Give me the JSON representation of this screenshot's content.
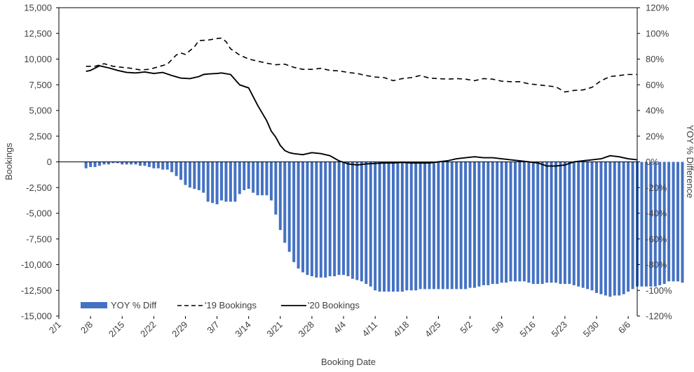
{
  "chart_data": {
    "type": "bar",
    "title": "",
    "xlabel": "Booking Date",
    "ylabel": "Bookings",
    "y2label": "YOY % Difference",
    "ylim": [
      -15000,
      15000
    ],
    "y2lim": [
      -120,
      120
    ],
    "yticks": [
      15000,
      12500,
      10000,
      7500,
      5000,
      2500,
      0,
      -2500,
      -5000,
      -7500,
      -10000,
      -12500,
      -15000
    ],
    "ytick_labels": [
      "15,000",
      "12,500",
      "10,000",
      "7,500",
      "5,000",
      "2,500",
      "0",
      "-2,500",
      "-5,000",
      "-7,500",
      "-10,000",
      "-12,500",
      "-15,000"
    ],
    "y2ticks": [
      120,
      100,
      80,
      60,
      40,
      20,
      0,
      -20,
      -40,
      -60,
      -80,
      -100,
      -120
    ],
    "y2tick_labels": [
      "120%",
      "100%",
      "80%",
      "60%",
      "40%",
      "20%",
      "0%",
      "-20%",
      "-40%",
      "-60%",
      "-80%",
      "-100%",
      "-120%"
    ],
    "x_tick_labels": [
      "2/1",
      "2/8",
      "2/15",
      "2/22",
      "2/29",
      "3/7",
      "3/14",
      "3/21",
      "3/28",
      "4/4",
      "4/11",
      "4/18",
      "4/25",
      "5/2",
      "5/9",
      "5/16",
      "5/23",
      "5/30",
      "6/6"
    ],
    "x_tick_day_index": [
      0,
      7,
      14,
      21,
      28,
      35,
      42,
      49,
      56,
      63,
      70,
      77,
      84,
      91,
      98,
      105,
      112,
      119,
      126
    ],
    "x_day_range": [
      0,
      128
    ],
    "grid": false,
    "legend_position": "bottom-left",
    "colors": {
      "bar": "#4472C4",
      "line19": "#000000",
      "line20": "#000000",
      "axis": "#000000"
    },
    "series": [
      {
        "name": "YOY % Diff",
        "kind": "bar",
        "axis": "secondary",
        "unit": "%",
        "start_day": 6,
        "values": [
          -5,
          -4,
          -4,
          -3,
          -2,
          -2,
          -1,
          -1,
          -2,
          -2,
          -2,
          -2,
          -3,
          -3,
          -4,
          -5,
          -5,
          -6,
          -6,
          -8,
          -11,
          -14,
          -18,
          -20,
          -21,
          -22,
          -24,
          -31,
          -32,
          -33,
          -30,
          -31,
          -31,
          -31,
          -25,
          -22,
          -21,
          -24,
          -26,
          -26,
          -26,
          -30,
          -41,
          -53,
          -63,
          -70,
          -78,
          -83,
          -86,
          -88,
          -89,
          -90,
          -90,
          -90,
          -89,
          -89,
          -88,
          -88,
          -89,
          -91,
          -92,
          -93,
          -95,
          -97,
          -100,
          -101,
          -101,
          -101,
          -101,
          -101,
          -101,
          -100,
          -100,
          -100,
          -99,
          -99,
          -99,
          -99,
          -99,
          -99,
          -99,
          -99,
          -99,
          -99,
          -99,
          -98,
          -98,
          -97,
          -96,
          -96,
          -95,
          -95,
          -94,
          -94,
          -93,
          -93,
          -93,
          -93,
          -94,
          -95,
          -95,
          -95,
          -94,
          -94,
          -94,
          -95,
          -95,
          -95,
          -96,
          -97,
          -98,
          -99,
          -100,
          -102,
          -103,
          -104,
          -105,
          -104,
          -104,
          -103,
          -101,
          -99,
          -97,
          -97,
          -97,
          -97,
          -97,
          -96,
          -95,
          -93,
          -93,
          -93,
          -94
        ]
      },
      {
        "name": "'19 Bookings",
        "kind": "line",
        "axis": "primary",
        "dash": "dashed",
        "x_day": [
          6,
          8,
          10,
          12,
          14,
          16,
          18,
          20,
          22,
          24,
          26,
          27,
          28,
          30,
          31,
          33,
          35,
          36,
          37,
          38,
          40,
          42,
          44,
          46,
          48,
          50,
          52,
          54,
          56,
          58,
          60,
          62,
          64,
          66,
          68,
          70,
          72,
          74,
          76,
          78,
          80,
          82,
          84,
          86,
          88,
          90,
          92,
          94,
          96,
          98,
          100,
          102,
          104,
          106,
          108,
          110,
          112,
          114,
          116,
          118,
          120,
          122,
          124,
          126,
          128
        ],
        "y": [
          9300,
          9300,
          9550,
          9300,
          9200,
          9100,
          8950,
          9000,
          9250,
          9500,
          10400,
          10600,
          10450,
          11200,
          11800,
          11850,
          12000,
          12050,
          11700,
          11000,
          10400,
          10000,
          9800,
          9600,
          9450,
          9500,
          9200,
          9000,
          9000,
          9100,
          8900,
          8850,
          8700,
          8600,
          8400,
          8250,
          8200,
          7900,
          8100,
          8200,
          8400,
          8150,
          8100,
          8050,
          8100,
          8050,
          7900,
          8100,
          8050,
          7850,
          7800,
          7800,
          7600,
          7500,
          7400,
          7300,
          6800,
          6950,
          7000,
          7250,
          7900,
          8300,
          8400,
          8500,
          8500
        ]
      },
      {
        "name": "'20 Bookings",
        "kind": "line",
        "axis": "primary",
        "dash": "solid",
        "x_day": [
          6,
          7,
          9,
          11,
          13,
          15,
          17,
          19,
          21,
          23,
          25,
          27,
          29,
          31,
          32,
          33,
          35,
          36,
          38,
          40,
          42,
          44,
          46,
          47,
          48,
          49,
          50,
          51,
          52,
          54,
          56,
          58,
          60,
          62,
          64,
          66,
          68,
          70,
          72,
          74,
          76,
          78,
          80,
          82,
          84,
          86,
          88,
          90,
          92,
          94,
          96,
          98,
          100,
          102,
          104,
          106,
          108,
          110,
          112,
          114,
          116,
          118,
          120,
          122,
          124,
          126,
          128
        ],
        "y": [
          8800,
          8900,
          9350,
          9150,
          8900,
          8700,
          8650,
          8750,
          8600,
          8700,
          8400,
          8150,
          8100,
          8300,
          8500,
          8550,
          8600,
          8650,
          8500,
          7500,
          7200,
          5500,
          4000,
          3000,
          2400,
          1600,
          1100,
          900,
          800,
          700,
          900,
          800,
          600,
          100,
          -200,
          -300,
          -200,
          -150,
          -100,
          -100,
          -50,
          -100,
          -100,
          -100,
          0,
          100,
          300,
          400,
          500,
          400,
          400,
          300,
          200,
          100,
          0,
          -100,
          -400,
          -400,
          -300,
          0,
          100,
          200,
          300,
          600,
          500,
          300,
          200
        ]
      }
    ]
  }
}
